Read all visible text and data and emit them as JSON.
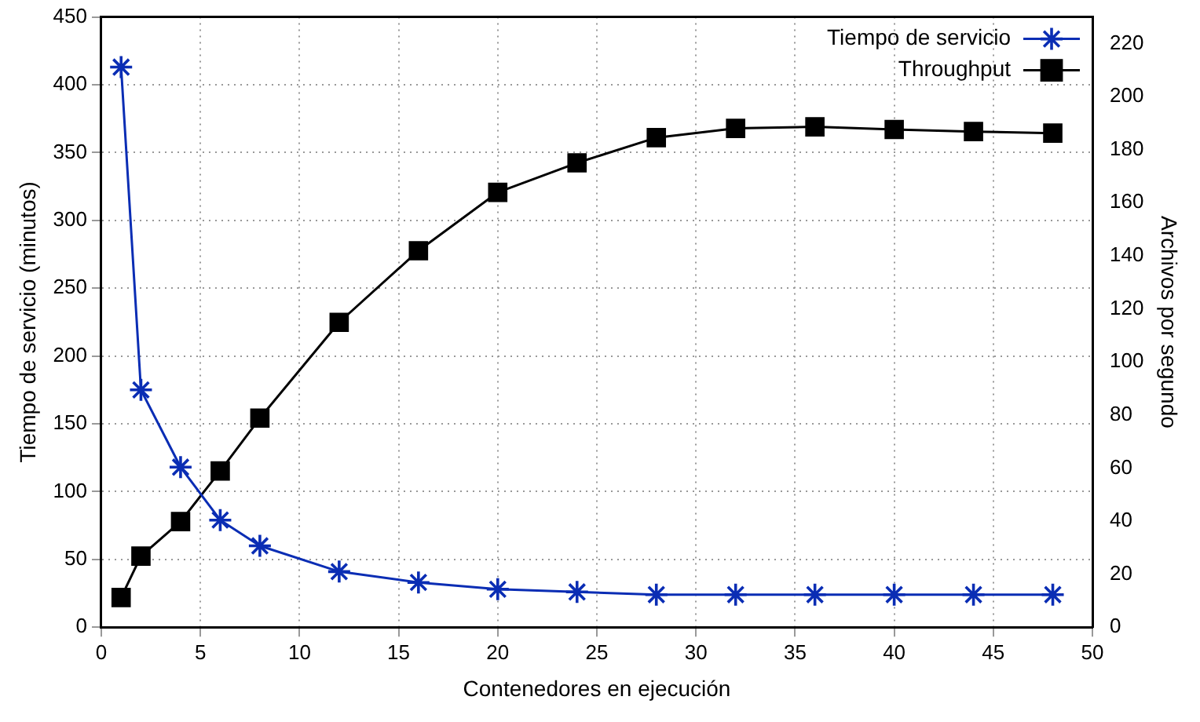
{
  "chart_data": {
    "type": "line",
    "xlabel": "Contenedores en ejecución",
    "ylabel": "Tiempo de servicio (minutos)",
    "y2label": "Archivos por segundo",
    "x": [
      1,
      2,
      4,
      6,
      8,
      12,
      16,
      20,
      24,
      28,
      32,
      36,
      40,
      44,
      48
    ],
    "xlim": [
      0,
      50
    ],
    "xticks": [
      0,
      5,
      10,
      15,
      20,
      25,
      30,
      35,
      40,
      45,
      50
    ],
    "ylim": [
      0,
      450
    ],
    "yticks": [
      0,
      50,
      100,
      150,
      200,
      250,
      300,
      350,
      400,
      450
    ],
    "y2lim": [
      0,
      230
    ],
    "y2ticks": [
      0,
      20,
      40,
      60,
      80,
      100,
      120,
      140,
      160,
      180,
      200,
      220
    ],
    "grid": true,
    "legend": "top right",
    "series": [
      {
        "name": "Tiempo de servicio",
        "color": "#0a2db4",
        "marker": "cross",
        "values": [
          413,
          175,
          118,
          79,
          60,
          41,
          33,
          28,
          26,
          24,
          24,
          24,
          24,
          24,
          24
        ]
      },
      {
        "name": "Throughput",
        "color": "#000000",
        "marker": "square",
        "axis": "y2",
        "values": [
          11.2,
          26.8,
          39.8,
          58.9,
          78.8,
          114.9,
          141.9,
          163.9,
          175,
          184.5,
          188,
          188.6,
          187.6,
          186.8,
          186.2
        ]
      }
    ]
  }
}
